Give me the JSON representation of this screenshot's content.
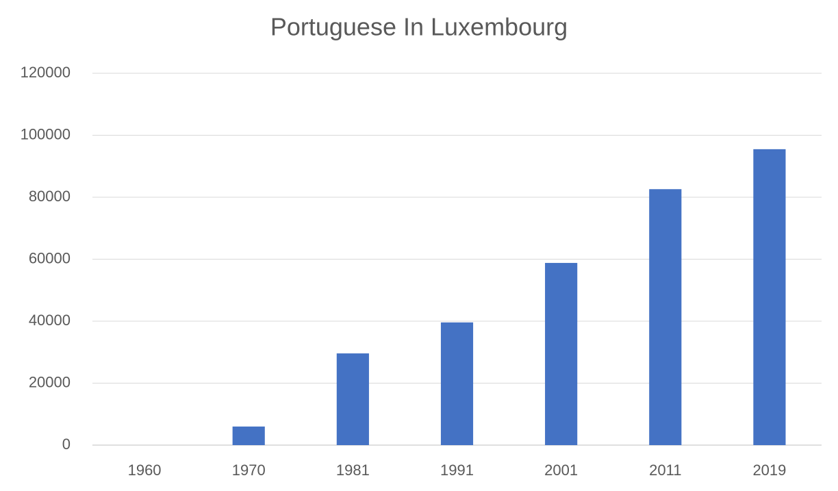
{
  "chart_data": {
    "type": "bar",
    "title": "Portuguese In Luxembourg",
    "categories": [
      "1960",
      "1970",
      "1981",
      "1991",
      "2001",
      "2011",
      "2019"
    ],
    "values": [
      0,
      6000,
      29600,
      39600,
      58800,
      82600,
      95500
    ],
    "color": "#4472c4",
    "ylim": [
      0,
      120000
    ],
    "yticks": [
      0,
      20000,
      40000,
      60000,
      80000,
      100000,
      120000
    ],
    "grid": true
  }
}
